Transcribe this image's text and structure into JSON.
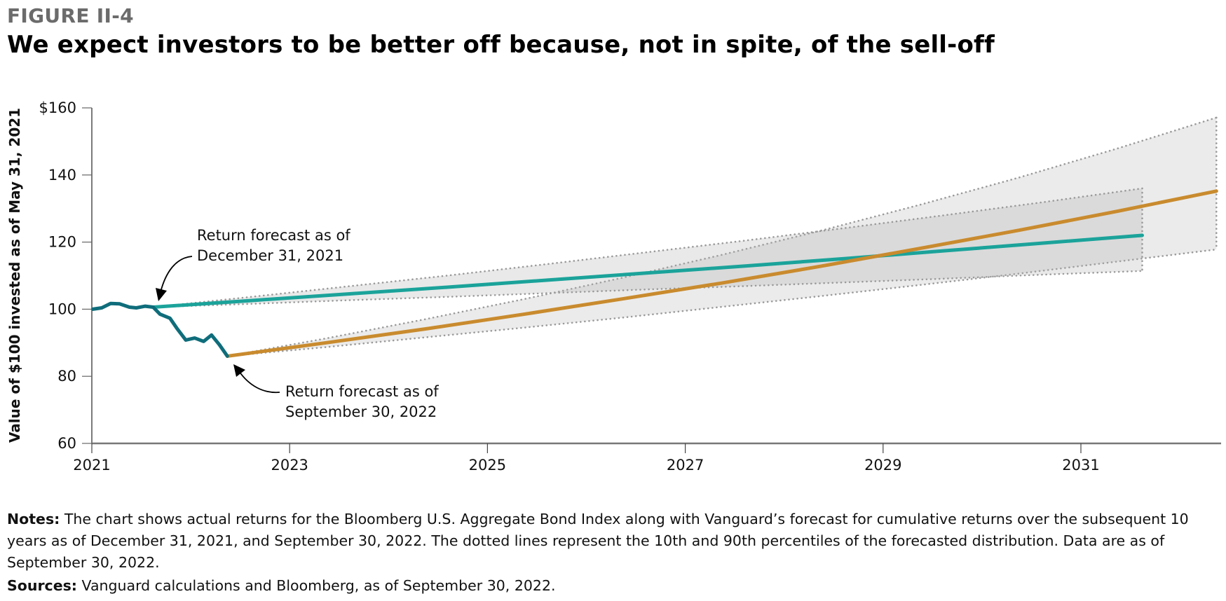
{
  "header": {
    "figure_label": "FIGURE II-4",
    "title": "We expect investors to be better off because, not in spite, of the sell-off"
  },
  "chart_data": {
    "type": "line",
    "title": "We expect investors to be better off because, not in spite, of the sell-off",
    "xlabel": "",
    "ylabel": "Value of $100 invested as of May 31, 2021",
    "xlim": [
      2021,
      2032.45
    ],
    "ylim": [
      60,
      160
    ],
    "x_ticks": [
      2021,
      2023,
      2025,
      2027,
      2029,
      2031
    ],
    "x_tick_labels": [
      "2021",
      "2023",
      "2025",
      "2027",
      "2029",
      "2031"
    ],
    "y_ticks": [
      60,
      80,
      100,
      120,
      140,
      160
    ],
    "y_tick_labels": [
      "60",
      "80",
      "100",
      "120",
      "140",
      "$160"
    ],
    "grid": false,
    "series": [
      {
        "name": "Actual returns (Bloomberg U.S. Aggregate Bond Index)",
        "color": "#0f6d7b",
        "x": [
          2021.01,
          2021.1,
          2021.19,
          2021.28,
          2021.38,
          2021.45,
          2021.54,
          2021.62,
          2021.69,
          2021.79,
          2021.86,
          2021.95,
          2022.04,
          2022.13,
          2022.21,
          2022.29,
          2022.37
        ],
        "values": [
          100.0,
          100.4,
          101.7,
          101.6,
          100.6,
          100.4,
          100.9,
          100.6,
          98.5,
          97.3,
          94.3,
          90.8,
          91.4,
          90.4,
          92.3,
          89.4,
          86.0
        ]
      },
      {
        "name": "Return forecast as of December 31, 2021",
        "color": "#1ba39a",
        "x": [
          2021.62,
          2022.62,
          2023.62,
          2024.62,
          2025.62,
          2026.62,
          2027.62,
          2028.62,
          2029.62,
          2030.62,
          2031.62
        ],
        "values": [
          100.6,
          102.6,
          104.6,
          106.6,
          108.7,
          110.8,
          112.9,
          115.1,
          117.4,
          119.7,
          122.0
        ],
        "p90": [
          100.6,
          103.7,
          106.9,
          110.1,
          113.5,
          117.0,
          120.5,
          124.2,
          128.0,
          131.9,
          136.0
        ],
        "p10": [
          100.6,
          101.6,
          102.7,
          103.7,
          104.8,
          105.9,
          106.9,
          108.0,
          109.1,
          110.3,
          111.4
        ]
      },
      {
        "name": "Return forecast as of September 30, 2022",
        "color": "#c98b2e",
        "x": [
          2022.37,
          2023.37,
          2024.37,
          2025.37,
          2026.37,
          2027.37,
          2028.37,
          2029.37,
          2030.37,
          2031.37,
          2032.37
        ],
        "values": [
          86.0,
          90.0,
          94.1,
          98.5,
          103.1,
          107.8,
          112.8,
          118.1,
          123.5,
          129.2,
          135.2
        ],
        "p90": [
          86.0,
          91.3,
          97.0,
          103.0,
          109.4,
          116.2,
          123.4,
          131.1,
          139.2,
          147.9,
          157.1
        ],
        "p10": [
          86.0,
          88.7,
          91.6,
          94.5,
          97.5,
          100.7,
          103.9,
          107.2,
          110.6,
          114.2,
          117.8
        ]
      }
    ],
    "band_style": {
      "fill": "#ebebeb",
      "overlap_fill": "#d8d8d8",
      "stroke": "#9a9a9a"
    },
    "annotations": [
      {
        "lines": [
          "Return forecast as of",
          "December 31, 2021"
        ],
        "points_to": [
          2021.62,
          100.6
        ]
      },
      {
        "lines": [
          "Return forecast as of",
          "September 30, 2022"
        ],
        "points_to": [
          2022.37,
          86.0
        ]
      }
    ]
  },
  "notes": {
    "label": "Notes:",
    "text": " The chart shows actual returns for the Bloomberg U.S. Aggregate Bond Index along with Vanguard’s forecast for cumulative returns over the subsequent 10 years as of December 31, 2021, and September 30, 2022. The dotted lines represent the 10th and 90th percentiles of the forecasted distribution. Data are as of September 30, 2022."
  },
  "sources": {
    "label": "Sources:",
    "text": " Vanguard calculations and Bloomberg, as of September 30, 2022."
  }
}
